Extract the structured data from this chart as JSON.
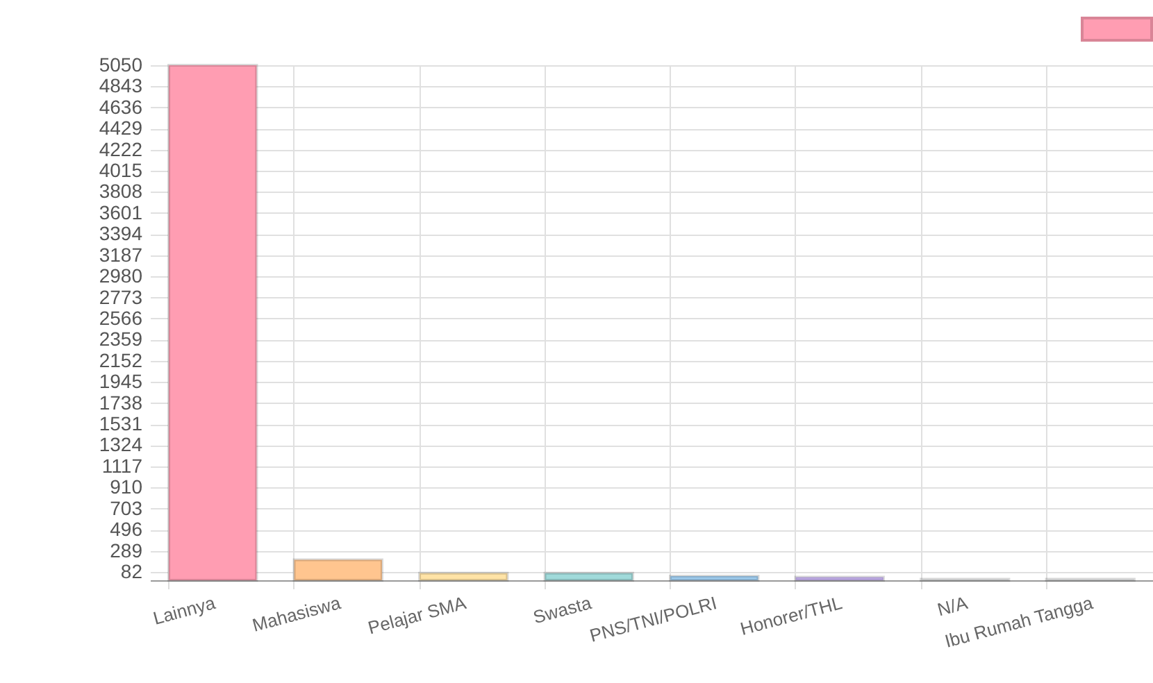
{
  "chart_data": {
    "type": "bar",
    "categories": [
      "Lainnya",
      "Mahasiswa",
      "Pelajar SMA",
      "Swasta",
      "PNS/TNI/POLRI",
      "Honorer/THL",
      "N/A",
      "Ibu Rumah Tangga"
    ],
    "values": [
      5050,
      200,
      70,
      70,
      40,
      30,
      10,
      10
    ],
    "colors": [
      "#ff9db2",
      "#ffc58f",
      "#ffe3a6",
      "#a0dada",
      "#9fcdef",
      "#cdb8f7",
      "#e4e5e7",
      "#e9eaec"
    ],
    "ylim": [
      0,
      5050
    ],
    "yticks": [
      82,
      289,
      496,
      703,
      910,
      1117,
      1324,
      1531,
      1738,
      1945,
      2152,
      2359,
      2566,
      2773,
      2980,
      3187,
      3394,
      3601,
      3808,
      4015,
      4222,
      4429,
      4636,
      4843,
      5050
    ],
    "grid": true
  }
}
